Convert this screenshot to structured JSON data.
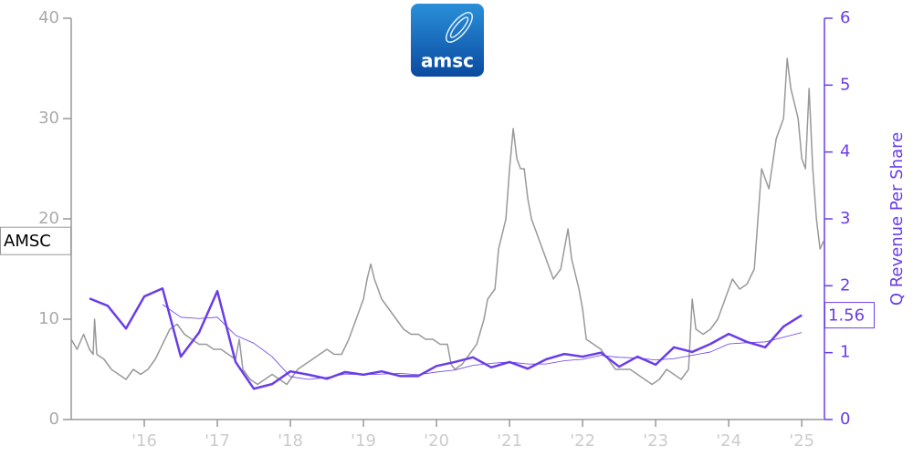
{
  "chart_data": {
    "type": "line",
    "logo_text": "amsc",
    "y2_label": "Q Revenue Per Share",
    "xlim": [
      2015.0,
      2025.31
    ],
    "xticks": [
      {
        "value": 2016,
        "label": "'16"
      },
      {
        "value": 2017,
        "label": "'17"
      },
      {
        "value": 2018,
        "label": "'18"
      },
      {
        "value": 2019,
        "label": "'19"
      },
      {
        "value": 2020,
        "label": "'20"
      },
      {
        "value": 2021,
        "label": "'21"
      },
      {
        "value": 2022,
        "label": "'22"
      },
      {
        "value": 2023,
        "label": "'23"
      },
      {
        "value": 2024,
        "label": "'24"
      },
      {
        "value": 2025,
        "label": "'25"
      }
    ],
    "ylim": [
      0,
      40
    ],
    "yticks": [
      0,
      10,
      20,
      30,
      40
    ],
    "y2lim": [
      0,
      6
    ],
    "y2ticks": [
      0,
      1,
      2,
      3,
      4,
      5,
      6
    ],
    "series": [
      {
        "name": "AMSC",
        "color": "#999999",
        "width": 1.5,
        "axis": "y",
        "x": [
          2015.0,
          2015.08,
          2015.17,
          2015.25,
          2015.3,
          2015.32,
          2015.35,
          2015.45,
          2015.55,
          2015.65,
          2015.75,
          2015.85,
          2015.95,
          2016.05,
          2016.15,
          2016.25,
          2016.35,
          2016.45,
          2016.55,
          2016.65,
          2016.75,
          2016.85,
          2016.95,
          2017.05,
          2017.15,
          2017.25,
          2017.3,
          2017.35,
          2017.45,
          2017.55,
          2017.65,
          2017.75,
          2017.85,
          2017.95,
          2018.0,
          2018.1,
          2018.2,
          2018.3,
          2018.4,
          2018.5,
          2018.6,
          2018.7,
          2018.8,
          2018.9,
          2019.0,
          2019.05,
          2019.1,
          2019.15,
          2019.25,
          2019.35,
          2019.45,
          2019.55,
          2019.65,
          2019.75,
          2019.85,
          2019.95,
          2020.05,
          2020.15,
          2020.2,
          2020.25,
          2020.35,
          2020.45,
          2020.55,
          2020.65,
          2020.7,
          2020.8,
          2020.85,
          2020.95,
          2021.0,
          2021.05,
          2021.1,
          2021.15,
          2021.2,
          2021.25,
          2021.3,
          2021.4,
          2021.5,
          2021.6,
          2021.7,
          2021.8,
          2021.85,
          2021.95,
          2022.0,
          2022.05,
          2022.15,
          2022.25,
          2022.35,
          2022.45,
          2022.55,
          2022.65,
          2022.75,
          2022.85,
          2022.95,
          2023.05,
          2023.15,
          2023.25,
          2023.35,
          2023.45,
          2023.5,
          2023.55,
          2023.65,
          2023.75,
          2023.85,
          2023.95,
          2024.05,
          2024.15,
          2024.25,
          2024.35,
          2024.4,
          2024.45,
          2024.55,
          2024.65,
          2024.75,
          2024.8,
          2024.85,
          2024.95,
          2025.0,
          2025.05,
          2025.1,
          2025.15,
          2025.2,
          2025.25,
          2025.3
        ],
        "values": [
          8,
          7,
          8.5,
          7,
          6.5,
          10,
          6.5,
          6,
          5,
          4.5,
          4,
          5,
          4.5,
          5,
          6,
          7.5,
          9,
          9.5,
          8.5,
          8,
          7.5,
          7.5,
          7,
          7,
          6.5,
          6,
          8,
          5,
          4,
          3.5,
          4,
          4.5,
          4,
          3.5,
          4,
          5,
          5.5,
          6,
          6.5,
          7,
          6.5,
          6.5,
          8,
          10,
          12,
          14,
          15.5,
          14,
          12,
          11,
          10,
          9,
          8.5,
          8.5,
          8,
          8,
          7.5,
          7.5,
          5.5,
          5,
          5.5,
          6.5,
          7.5,
          10,
          12,
          13,
          17,
          20,
          25,
          29,
          26,
          25,
          25,
          22,
          20,
          18,
          16,
          14,
          15,
          19,
          16,
          13,
          11,
          8,
          7.5,
          7,
          6,
          5,
          5,
          5,
          4.5,
          4,
          3.5,
          4,
          5,
          4.5,
          4,
          5,
          12,
          9,
          8.5,
          9,
          10,
          12,
          14,
          13,
          13.5,
          15,
          20,
          25,
          23,
          28,
          30,
          36,
          33,
          30,
          26,
          25,
          33,
          25,
          20,
          17,
          17.8
        ]
      },
      {
        "color": "#6a3de8",
        "width": 0.8,
        "axis": "y2",
        "x": [
          2016.25,
          2016.5,
          2016.75,
          2017.0,
          2017.25,
          2017.5,
          2017.75,
          2018.0,
          2018.25,
          2018.5,
          2018.75,
          2019.0,
          2019.25,
          2019.5,
          2019.75,
          2020.0,
          2020.25,
          2020.5,
          2020.75,
          2021.0,
          2021.25,
          2021.5,
          2021.75,
          2022.0,
          2022.25,
          2022.5,
          2022.75,
          2023.0,
          2023.25,
          2023.5,
          2023.75,
          2024.0,
          2024.25,
          2024.5,
          2024.75,
          2025.0
        ],
        "values": [
          1.72,
          1.53,
          1.51,
          1.53,
          1.26,
          1.14,
          0.94,
          0.64,
          0.6,
          0.63,
          0.68,
          0.67,
          0.68,
          0.69,
          0.67,
          0.71,
          0.74,
          0.81,
          0.84,
          0.86,
          0.83,
          0.83,
          0.88,
          0.9,
          0.96,
          0.93,
          0.92,
          0.89,
          0.91,
          0.96,
          1.01,
          1.13,
          1.15,
          1.16,
          1.23,
          1.3
        ]
      },
      {
        "color": "#6a3de8",
        "width": 2.5,
        "axis": "y2",
        "x": [
          2015.25,
          2015.5,
          2015.75,
          2016.0,
          2016.25,
          2016.5,
          2016.75,
          2017.0,
          2017.25,
          2017.5,
          2017.75,
          2018.0,
          2018.25,
          2018.5,
          2018.75,
          2019.0,
          2019.25,
          2019.5,
          2019.75,
          2020.0,
          2020.25,
          2020.5,
          2020.75,
          2021.0,
          2021.25,
          2021.5,
          2021.75,
          2022.0,
          2022.25,
          2022.5,
          2022.75,
          2023.0,
          2023.25,
          2023.5,
          2023.75,
          2024.0,
          2024.25,
          2024.5,
          2024.75,
          2025.0
        ],
        "values": [
          1.81,
          1.7,
          1.36,
          1.84,
          1.96,
          0.94,
          1.3,
          1.92,
          0.86,
          0.46,
          0.53,
          0.72,
          0.67,
          0.61,
          0.71,
          0.67,
          0.72,
          0.65,
          0.65,
          0.8,
          0.86,
          0.93,
          0.78,
          0.86,
          0.76,
          0.9,
          0.98,
          0.94,
          1.0,
          0.79,
          0.94,
          0.82,
          1.08,
          1.01,
          1.13,
          1.28,
          1.16,
          1.08,
          1.39,
          1.56
        ]
      }
    ]
  }
}
